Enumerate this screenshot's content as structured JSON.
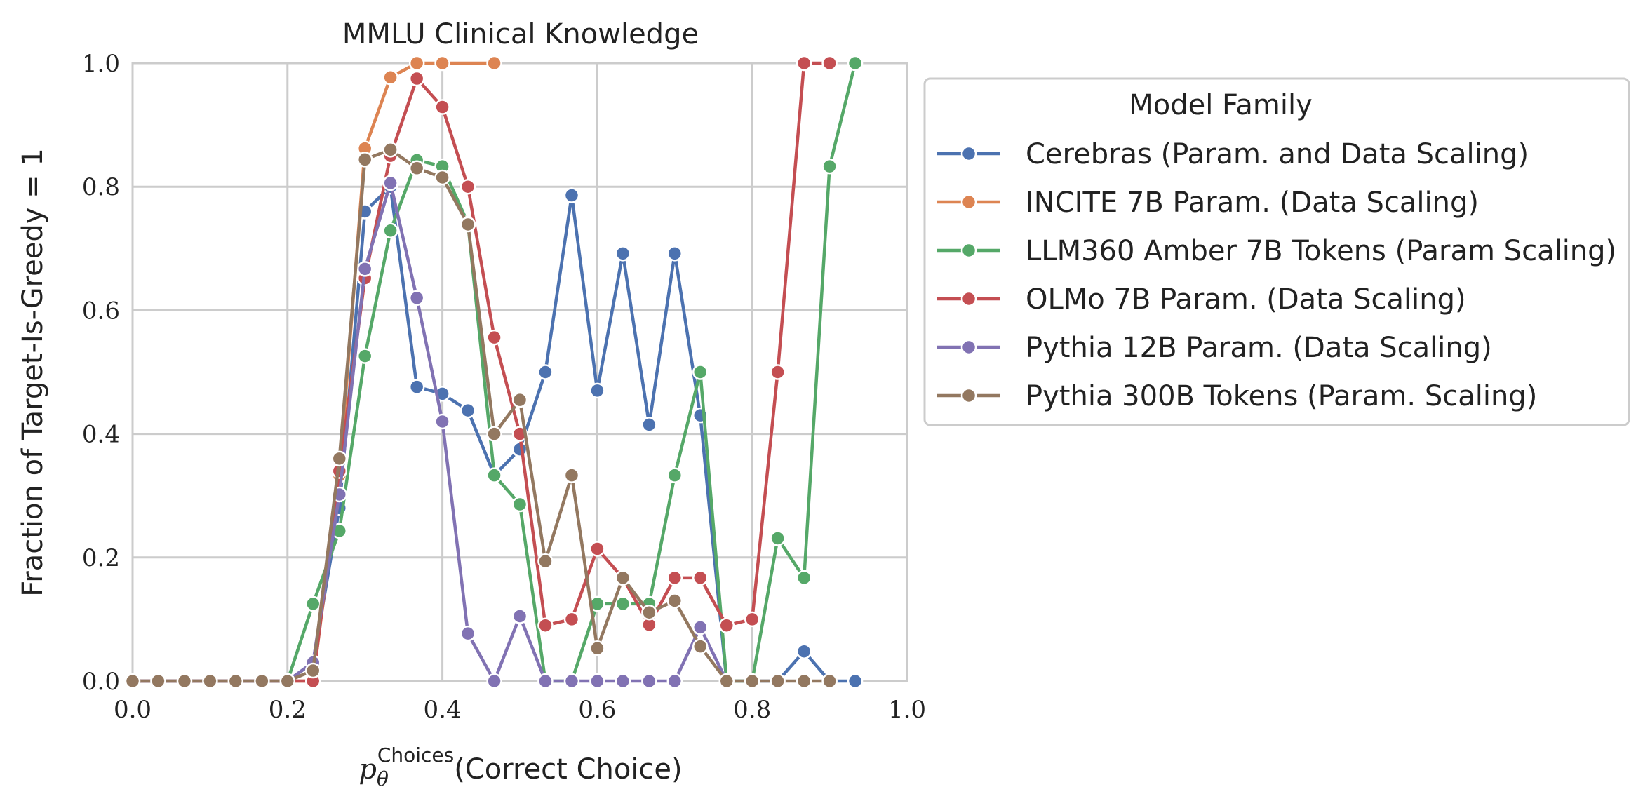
{
  "chart_data": {
    "type": "line",
    "title": "MMLU Clinical Knowledge",
    "xlabel": {
      "symbol": "p",
      "subscript": "θ",
      "superscript": "Choices",
      "text": "(Correct Choice)"
    },
    "ylabel": "Fraction of Target-Is-Greedy = 1",
    "xlim": [
      0.0,
      1.0
    ],
    "ylim": [
      0.0,
      1.0
    ],
    "xticks": [
      "0.0",
      "0.2",
      "0.4",
      "0.6",
      "0.8",
      "1.0"
    ],
    "yticks": [
      "0.0",
      "0.2",
      "0.4",
      "0.6",
      "0.8",
      "1.0"
    ],
    "grid": true,
    "legend": {
      "title": "Model Family",
      "placement": "outside-right"
    },
    "series": [
      {
        "name": "Cerebras (Param. and Data Scaling)",
        "color": "#4c72b0",
        "x": [
          0.0,
          0.033,
          0.067,
          0.1,
          0.133,
          0.167,
          0.2,
          0.233,
          0.267,
          0.3,
          0.333,
          0.367,
          0.4,
          0.433,
          0.467,
          0.5,
          0.533,
          0.567,
          0.6,
          0.633,
          0.667,
          0.7,
          0.733,
          0.767,
          0.8,
          0.833,
          0.867,
          0.9,
          0.933
        ],
        "y": [
          0.0,
          0.0,
          0.0,
          0.0,
          0.0,
          0.0,
          0.0,
          0.03,
          0.28,
          0.76,
          0.8,
          0.476,
          0.465,
          0.438,
          0.333,
          0.375,
          0.5,
          0.786,
          0.47,
          0.692,
          0.415,
          0.692,
          0.43,
          0.0,
          0.0,
          0.0,
          0.048,
          0.0,
          0.0
        ]
      },
      {
        "name": "INCITE 7B Param. (Data Scaling)",
        "color": "#dd8452",
        "x": [
          0.0,
          0.033,
          0.067,
          0.1,
          0.133,
          0.167,
          0.2,
          0.233,
          0.267,
          0.3,
          0.333,
          0.367,
          0.4,
          0.467
        ],
        "y": [
          0.0,
          0.0,
          0.0,
          0.0,
          0.0,
          0.0,
          0.0,
          0.0,
          0.333,
          0.862,
          0.977,
          1.0,
          1.0,
          1.0
        ]
      },
      {
        "name": "LLM360 Amber 7B Tokens (Param Scaling)",
        "color": "#55a868",
        "x": [
          0.0,
          0.033,
          0.067,
          0.1,
          0.133,
          0.167,
          0.2,
          0.233,
          0.267,
          0.3,
          0.333,
          0.367,
          0.4,
          0.433,
          0.467,
          0.5,
          0.533,
          0.567,
          0.6,
          0.633,
          0.667,
          0.7,
          0.733,
          0.767,
          0.8,
          0.833,
          0.867,
          0.9,
          0.933
        ],
        "y": [
          0.0,
          0.0,
          0.0,
          0.0,
          0.0,
          0.0,
          0.0,
          0.125,
          0.243,
          0.526,
          0.729,
          0.843,
          0.833,
          0.741,
          0.333,
          0.286,
          0.0,
          0.0,
          0.125,
          0.125,
          0.125,
          0.333,
          0.5,
          0.0,
          0.0,
          0.231,
          0.167,
          0.833,
          1.0
        ]
      },
      {
        "name": "OLMo 7B Param. (Data Scaling)",
        "color": "#c44e52",
        "x": [
          0.0,
          0.033,
          0.067,
          0.1,
          0.133,
          0.167,
          0.2,
          0.233,
          0.267,
          0.3,
          0.333,
          0.367,
          0.4,
          0.433,
          0.467,
          0.5,
          0.533,
          0.567,
          0.6,
          0.633,
          0.667,
          0.7,
          0.733,
          0.767,
          0.8,
          0.833,
          0.867,
          0.9
        ],
        "y": [
          0.0,
          0.0,
          0.0,
          0.0,
          0.0,
          0.0,
          0.0,
          0.0,
          0.34,
          0.652,
          0.85,
          0.975,
          0.929,
          0.8,
          0.556,
          0.4,
          0.09,
          0.1,
          0.214,
          0.167,
          0.091,
          0.167,
          0.167,
          0.09,
          0.1,
          0.5,
          1.0,
          1.0
        ]
      },
      {
        "name": "Pythia 12B Param. (Data Scaling)",
        "color": "#8172b3",
        "x": [
          0.0,
          0.033,
          0.067,
          0.1,
          0.133,
          0.167,
          0.2,
          0.233,
          0.267,
          0.3,
          0.333,
          0.367,
          0.4,
          0.433,
          0.467,
          0.5,
          0.533,
          0.567,
          0.6,
          0.633,
          0.667,
          0.7,
          0.733,
          0.767
        ],
        "y": [
          0.0,
          0.0,
          0.0,
          0.0,
          0.0,
          0.0,
          0.0,
          0.03,
          0.302,
          0.667,
          0.806,
          0.62,
          0.42,
          0.077,
          0.0,
          0.105,
          0.0,
          0.0,
          0.0,
          0.0,
          0.0,
          0.0,
          0.087,
          0.0
        ]
      },
      {
        "name": "Pythia 300B Tokens (Param. Scaling)",
        "color": "#937860",
        "x": [
          0.0,
          0.033,
          0.067,
          0.1,
          0.133,
          0.167,
          0.2,
          0.233,
          0.267,
          0.3,
          0.333,
          0.367,
          0.4,
          0.433,
          0.467,
          0.5,
          0.533,
          0.567,
          0.6,
          0.633,
          0.667,
          0.7,
          0.733,
          0.767,
          0.8,
          0.833,
          0.867,
          0.9
        ],
        "y": [
          0.0,
          0.0,
          0.0,
          0.0,
          0.0,
          0.0,
          0.0,
          0.017,
          0.36,
          0.844,
          0.86,
          0.83,
          0.815,
          0.739,
          0.4,
          0.455,
          0.194,
          0.333,
          0.053,
          0.167,
          0.111,
          0.13,
          0.056,
          0.0,
          0.0,
          0.0,
          0.0,
          0.0
        ]
      }
    ]
  }
}
